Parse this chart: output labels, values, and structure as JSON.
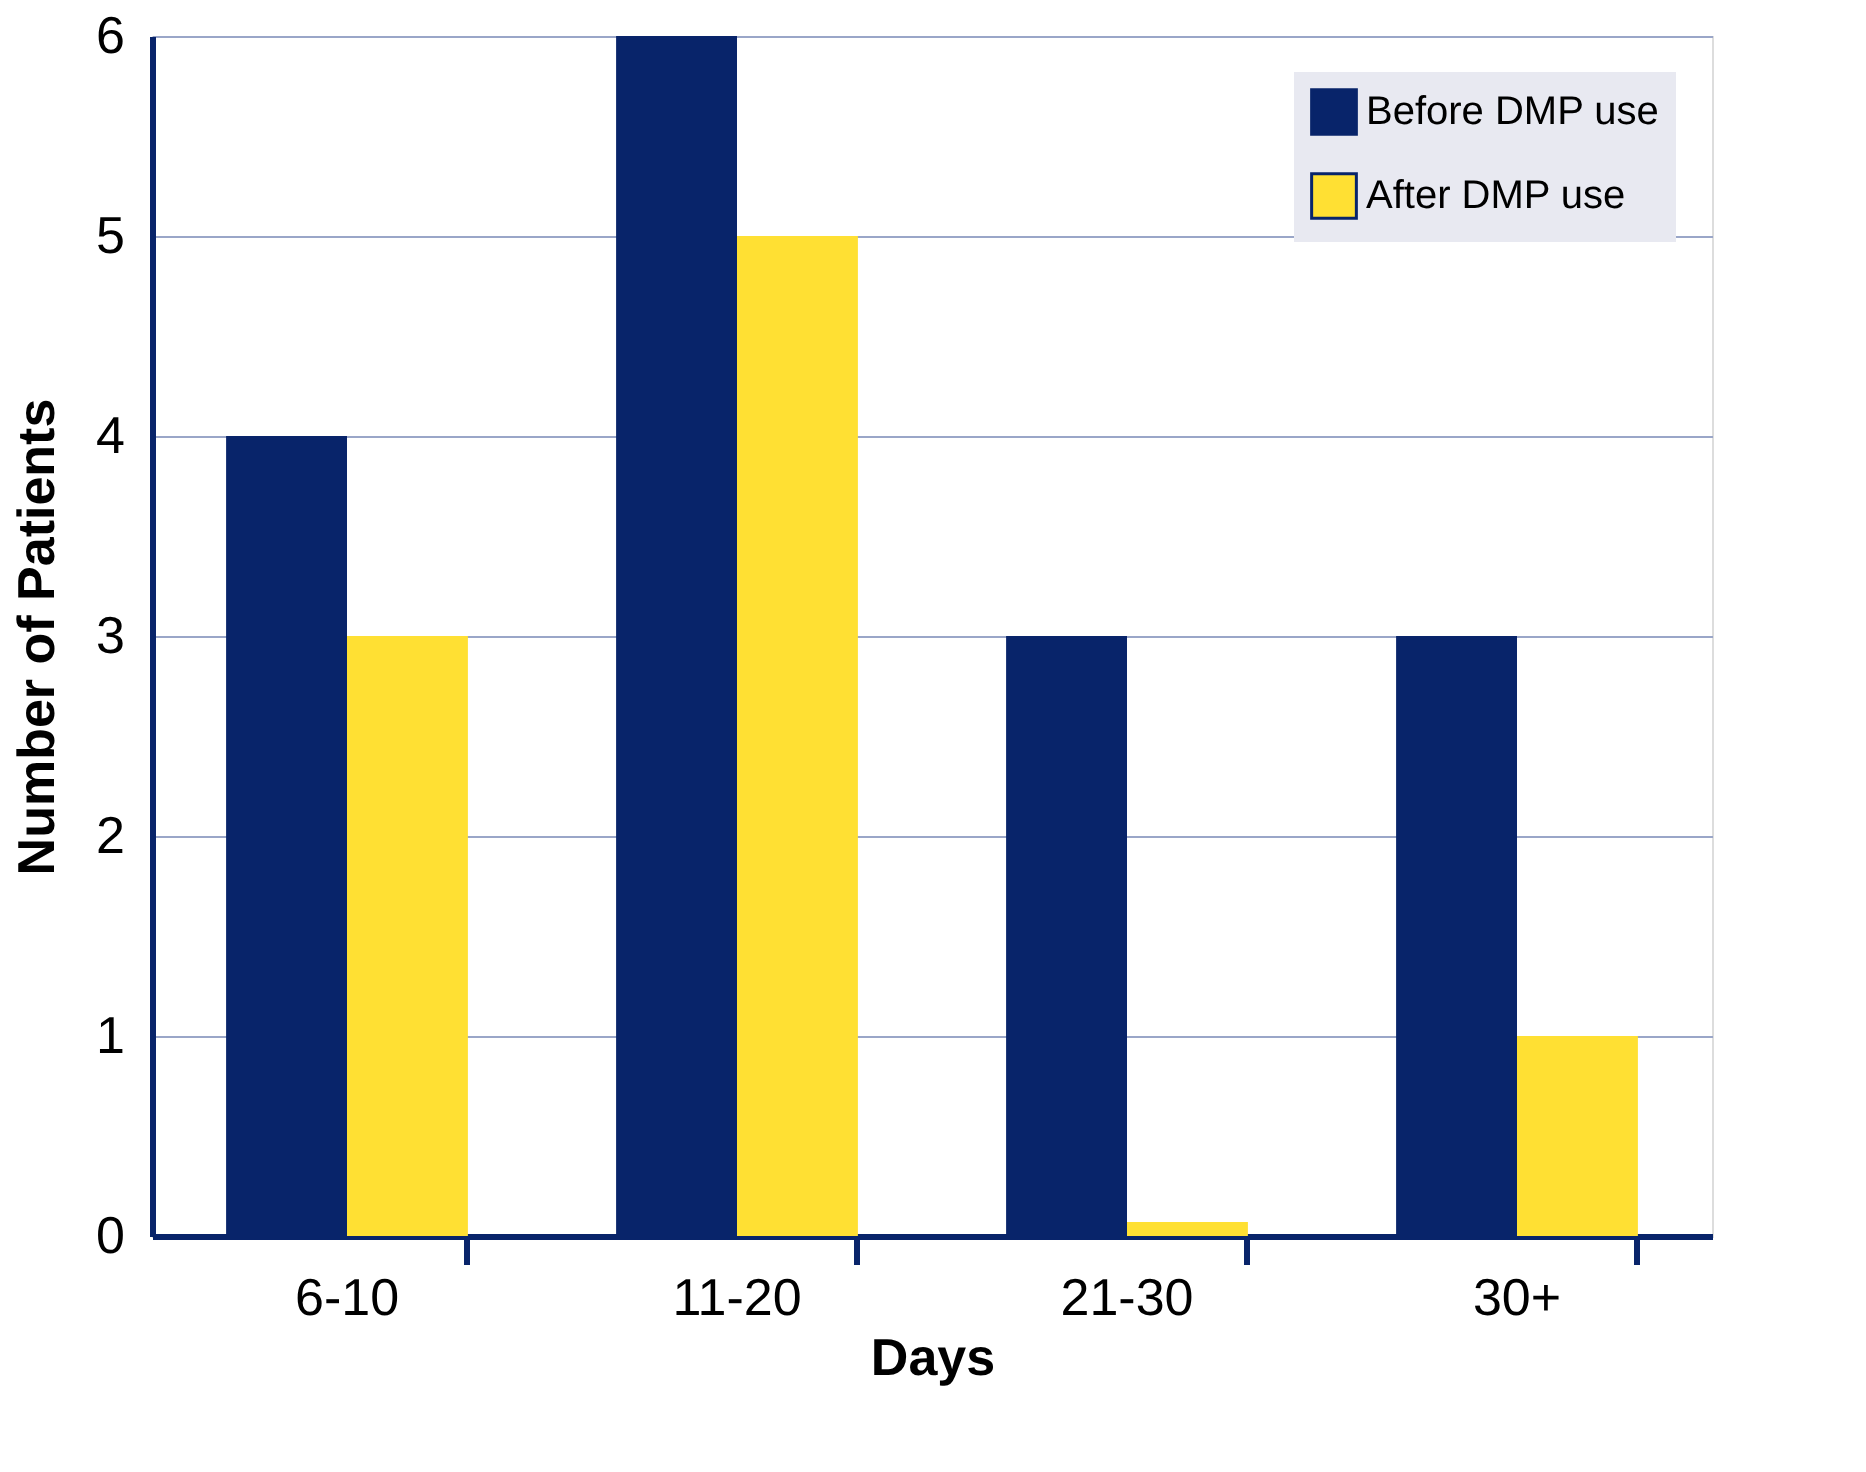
{
  "chart_data": {
    "type": "bar",
    "xlabel": "Days",
    "ylabel": "Number of Patients",
    "categories": [
      "6-10",
      "11-20",
      "21-30",
      "30+"
    ],
    "series": [
      {
        "name": "Before DMP use",
        "color": "#08246a",
        "values": [
          4,
          6,
          3,
          3
        ]
      },
      {
        "name": "After DMP use",
        "color": "#ffe033",
        "values": [
          3,
          5,
          0.07,
          1
        ]
      }
    ],
    "ylim": [
      0,
      6
    ],
    "yticks": [
      0,
      1,
      2,
      3,
      4,
      5,
      6
    ],
    "grid": "y",
    "legend": "top right"
  }
}
